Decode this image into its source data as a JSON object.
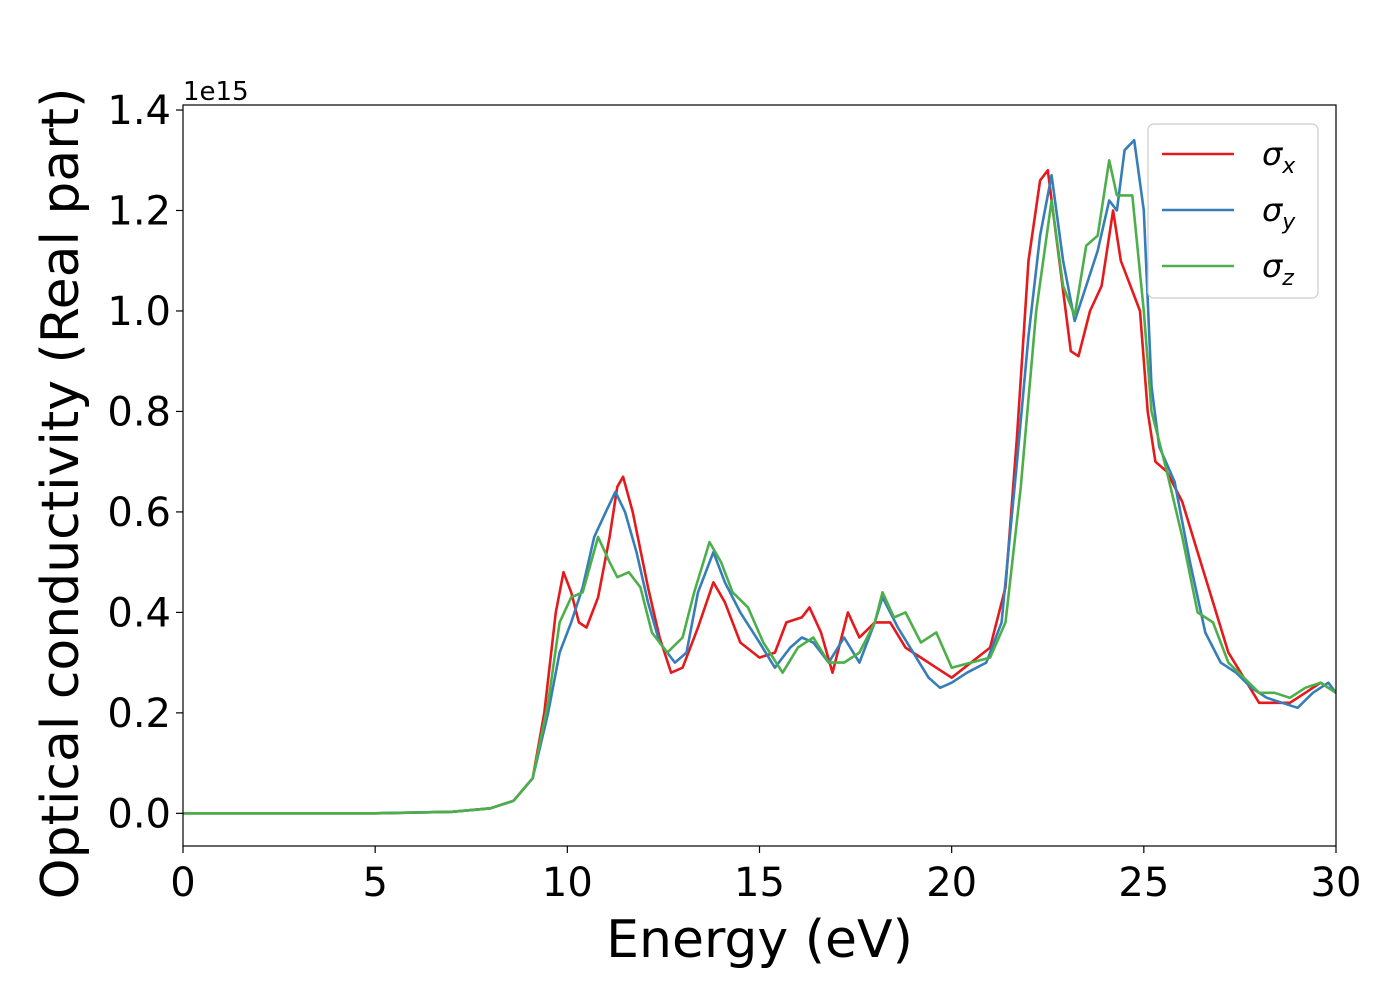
{
  "chart_data": {
    "type": "line",
    "title": "",
    "xlabel": "Energy (eV)",
    "ylabel": "Optical conductivity (Real part)",
    "y_offset_label": "1e15",
    "xlim": [
      0,
      30
    ],
    "ylim": [
      -0.065,
      1.41
    ],
    "xticks": [
      0,
      5,
      10,
      15,
      20,
      25,
      30
    ],
    "xtick_labels": [
      "0",
      "5",
      "10",
      "15",
      "20",
      "25",
      "30"
    ],
    "yticks": [
      0.0,
      0.2,
      0.4,
      0.6,
      0.8,
      1.0,
      1.2,
      1.4
    ],
    "ytick_labels": [
      "0.0",
      "0.2",
      "0.4",
      "0.6",
      "0.8",
      "1.0",
      "1.2",
      "1.4"
    ],
    "grid": false,
    "legend_position": "top-right",
    "series": [
      {
        "name": "σx",
        "symbol": "σ",
        "subscript": "x",
        "color": "#e41a1c",
        "points": [
          [
            0,
            0
          ],
          [
            5,
            0
          ],
          [
            7,
            0.003
          ],
          [
            8,
            0.01
          ],
          [
            8.6,
            0.025
          ],
          [
            9.1,
            0.07
          ],
          [
            9.4,
            0.2
          ],
          [
            9.7,
            0.4
          ],
          [
            9.9,
            0.48
          ],
          [
            10.1,
            0.44
          ],
          [
            10.3,
            0.38
          ],
          [
            10.5,
            0.37
          ],
          [
            10.8,
            0.43
          ],
          [
            11.1,
            0.55
          ],
          [
            11.3,
            0.65
          ],
          [
            11.45,
            0.67
          ],
          [
            11.7,
            0.6
          ],
          [
            12.1,
            0.45
          ],
          [
            12.4,
            0.35
          ],
          [
            12.7,
            0.28
          ],
          [
            13.0,
            0.29
          ],
          [
            13.4,
            0.37
          ],
          [
            13.8,
            0.46
          ],
          [
            14.1,
            0.42
          ],
          [
            14.5,
            0.34
          ],
          [
            15.0,
            0.31
          ],
          [
            15.4,
            0.32
          ],
          [
            15.7,
            0.38
          ],
          [
            16.1,
            0.39
          ],
          [
            16.3,
            0.41
          ],
          [
            16.6,
            0.36
          ],
          [
            16.9,
            0.28
          ],
          [
            17.3,
            0.4
          ],
          [
            17.6,
            0.35
          ],
          [
            18.0,
            0.38
          ],
          [
            18.4,
            0.38
          ],
          [
            18.8,
            0.33
          ],
          [
            19.2,
            0.31
          ],
          [
            19.6,
            0.29
          ],
          [
            20.0,
            0.27
          ],
          [
            20.5,
            0.3
          ],
          [
            21.0,
            0.33
          ],
          [
            21.4,
            0.45
          ],
          [
            21.7,
            0.75
          ],
          [
            22.0,
            1.1
          ],
          [
            22.3,
            1.26
          ],
          [
            22.5,
            1.28
          ],
          [
            22.8,
            1.1
          ],
          [
            23.1,
            0.92
          ],
          [
            23.3,
            0.91
          ],
          [
            23.6,
            1.0
          ],
          [
            23.9,
            1.05
          ],
          [
            24.2,
            1.2
          ],
          [
            24.4,
            1.1
          ],
          [
            24.6,
            1.06
          ],
          [
            24.9,
            1.0
          ],
          [
            25.1,
            0.8
          ],
          [
            25.3,
            0.7
          ],
          [
            25.6,
            0.68
          ],
          [
            26.0,
            0.62
          ],
          [
            26.4,
            0.52
          ],
          [
            26.8,
            0.42
          ],
          [
            27.2,
            0.32
          ],
          [
            27.6,
            0.27
          ],
          [
            28.0,
            0.22
          ],
          [
            28.4,
            0.22
          ],
          [
            28.8,
            0.22
          ],
          [
            29.2,
            0.24
          ],
          [
            29.6,
            0.26
          ],
          [
            30,
            0.24
          ]
        ]
      },
      {
        "name": "σy",
        "symbol": "σ",
        "subscript": "y",
        "color": "#377eb8",
        "points": [
          [
            0,
            0
          ],
          [
            5,
            0
          ],
          [
            7,
            0.003
          ],
          [
            8,
            0.01
          ],
          [
            8.6,
            0.025
          ],
          [
            9.1,
            0.07
          ],
          [
            9.5,
            0.2
          ],
          [
            9.8,
            0.32
          ],
          [
            10.1,
            0.38
          ],
          [
            10.4,
            0.45
          ],
          [
            10.7,
            0.55
          ],
          [
            11.0,
            0.6
          ],
          [
            11.25,
            0.64
          ],
          [
            11.5,
            0.6
          ],
          [
            11.8,
            0.52
          ],
          [
            12.1,
            0.42
          ],
          [
            12.4,
            0.34
          ],
          [
            12.8,
            0.3
          ],
          [
            13.1,
            0.32
          ],
          [
            13.4,
            0.44
          ],
          [
            13.8,
            0.52
          ],
          [
            14.1,
            0.46
          ],
          [
            14.5,
            0.4
          ],
          [
            15.0,
            0.34
          ],
          [
            15.4,
            0.29
          ],
          [
            15.8,
            0.33
          ],
          [
            16.1,
            0.35
          ],
          [
            16.4,
            0.34
          ],
          [
            16.8,
            0.3
          ],
          [
            17.2,
            0.35
          ],
          [
            17.6,
            0.3
          ],
          [
            18.0,
            0.38
          ],
          [
            18.2,
            0.43
          ],
          [
            18.6,
            0.37
          ],
          [
            19.0,
            0.32
          ],
          [
            19.4,
            0.27
          ],
          [
            19.7,
            0.25
          ],
          [
            20.0,
            0.26
          ],
          [
            20.4,
            0.28
          ],
          [
            20.9,
            0.3
          ],
          [
            21.3,
            0.38
          ],
          [
            21.7,
            0.7
          ],
          [
            22.0,
            0.95
          ],
          [
            22.3,
            1.15
          ],
          [
            22.6,
            1.27
          ],
          [
            22.9,
            1.1
          ],
          [
            23.2,
            0.98
          ],
          [
            23.5,
            1.05
          ],
          [
            23.8,
            1.12
          ],
          [
            24.1,
            1.22
          ],
          [
            24.3,
            1.2
          ],
          [
            24.5,
            1.32
          ],
          [
            24.75,
            1.34
          ],
          [
            25.0,
            1.2
          ],
          [
            25.2,
            0.85
          ],
          [
            25.4,
            0.73
          ],
          [
            25.8,
            0.66
          ],
          [
            26.2,
            0.5
          ],
          [
            26.6,
            0.36
          ],
          [
            27.0,
            0.3
          ],
          [
            27.4,
            0.28
          ],
          [
            27.8,
            0.25
          ],
          [
            28.2,
            0.23
          ],
          [
            28.6,
            0.22
          ],
          [
            29.0,
            0.21
          ],
          [
            29.4,
            0.24
          ],
          [
            29.8,
            0.26
          ],
          [
            30,
            0.24
          ]
        ]
      },
      {
        "name": "σz",
        "symbol": "σ",
        "subscript": "z",
        "color": "#4daf4a",
        "points": [
          [
            0,
            0
          ],
          [
            5,
            0
          ],
          [
            7,
            0.003
          ],
          [
            8,
            0.01
          ],
          [
            8.6,
            0.025
          ],
          [
            9.1,
            0.07
          ],
          [
            9.5,
            0.22
          ],
          [
            9.8,
            0.38
          ],
          [
            10.1,
            0.43
          ],
          [
            10.4,
            0.44
          ],
          [
            10.8,
            0.55
          ],
          [
            11.1,
            0.5
          ],
          [
            11.3,
            0.47
          ],
          [
            11.6,
            0.48
          ],
          [
            11.9,
            0.45
          ],
          [
            12.2,
            0.36
          ],
          [
            12.6,
            0.32
          ],
          [
            13.0,
            0.35
          ],
          [
            13.3,
            0.44
          ],
          [
            13.7,
            0.54
          ],
          [
            14.0,
            0.5
          ],
          [
            14.3,
            0.44
          ],
          [
            14.7,
            0.41
          ],
          [
            15.1,
            0.34
          ],
          [
            15.6,
            0.28
          ],
          [
            16.0,
            0.33
          ],
          [
            16.4,
            0.35
          ],
          [
            16.8,
            0.3
          ],
          [
            17.2,
            0.3
          ],
          [
            17.6,
            0.32
          ],
          [
            18.0,
            0.38
          ],
          [
            18.2,
            0.44
          ],
          [
            18.5,
            0.39
          ],
          [
            18.8,
            0.4
          ],
          [
            19.2,
            0.34
          ],
          [
            19.6,
            0.36
          ],
          [
            20.0,
            0.29
          ],
          [
            20.5,
            0.3
          ],
          [
            21.0,
            0.31
          ],
          [
            21.4,
            0.38
          ],
          [
            21.8,
            0.65
          ],
          [
            22.2,
            1.0
          ],
          [
            22.6,
            1.22
          ],
          [
            22.9,
            1.05
          ],
          [
            23.2,
            0.99
          ],
          [
            23.5,
            1.13
          ],
          [
            23.8,
            1.15
          ],
          [
            24.1,
            1.3
          ],
          [
            24.3,
            1.23
          ],
          [
            24.7,
            1.23
          ],
          [
            25.0,
            1.0
          ],
          [
            25.2,
            0.8
          ],
          [
            25.6,
            0.68
          ],
          [
            26.0,
            0.55
          ],
          [
            26.4,
            0.4
          ],
          [
            26.8,
            0.38
          ],
          [
            27.2,
            0.3
          ],
          [
            27.6,
            0.27
          ],
          [
            28.0,
            0.24
          ],
          [
            28.4,
            0.24
          ],
          [
            28.8,
            0.23
          ],
          [
            29.2,
            0.25
          ],
          [
            29.6,
            0.26
          ],
          [
            30,
            0.24
          ]
        ]
      }
    ]
  }
}
